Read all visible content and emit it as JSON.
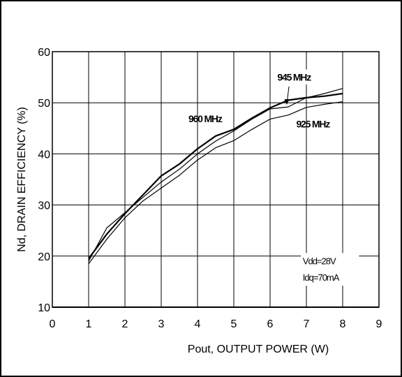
{
  "chart_data": {
    "type": "line",
    "xlabel": "Pout, OUTPUT POWER (W)",
    "ylabel": "Nd, DRAIN EFFICIENCY (%)",
    "xlim": [
      0,
      9
    ],
    "ylim": [
      10,
      60
    ],
    "x_ticks": [
      0,
      1,
      2,
      3,
      4,
      5,
      6,
      7,
      8,
      9
    ],
    "y_ticks": [
      10,
      20,
      30,
      40,
      50,
      60
    ],
    "grid": true,
    "series": [
      {
        "name": "960 MHz",
        "x": [
          1,
          1.5,
          2,
          2.5,
          3,
          3.5,
          4,
          4.5,
          5,
          5.5,
          6,
          6.5,
          7,
          7.5,
          8
        ],
        "y": [
          19.5,
          24.3,
          28.3,
          32.0,
          35.7,
          38.0,
          41.0,
          43.5,
          44.8,
          47.0,
          49.0,
          50.5,
          51.0,
          51.3,
          51.8
        ]
      },
      {
        "name": "945 MHz",
        "x": [
          1,
          1.5,
          2,
          2.5,
          3,
          3.5,
          4,
          4.5,
          5,
          5.5,
          6,
          6.5,
          7,
          7.5,
          8
        ],
        "y": [
          19.0,
          25.5,
          28.5,
          31.5,
          34.5,
          37.0,
          40.0,
          42.5,
          44.5,
          46.8,
          48.8,
          49.2,
          51.0,
          51.8,
          52.8
        ]
      },
      {
        "name": "925 MHz",
        "x": [
          1,
          1.5,
          2,
          2.5,
          3,
          3.5,
          4,
          4.5,
          5,
          5.5,
          6,
          6.5,
          7,
          7.5,
          8
        ],
        "y": [
          18.5,
          23.3,
          27.5,
          30.8,
          33.3,
          35.8,
          38.8,
          41.2,
          42.6,
          44.8,
          46.8,
          47.6,
          49.1,
          49.7,
          50.2
        ]
      }
    ],
    "series_labels": {
      "s960": "960 MHz",
      "s945": "945 MHz",
      "s925": "925 MHz"
    },
    "conditions": {
      "vdd": "Vdd=28V",
      "idq": "Idq=70mA"
    }
  }
}
